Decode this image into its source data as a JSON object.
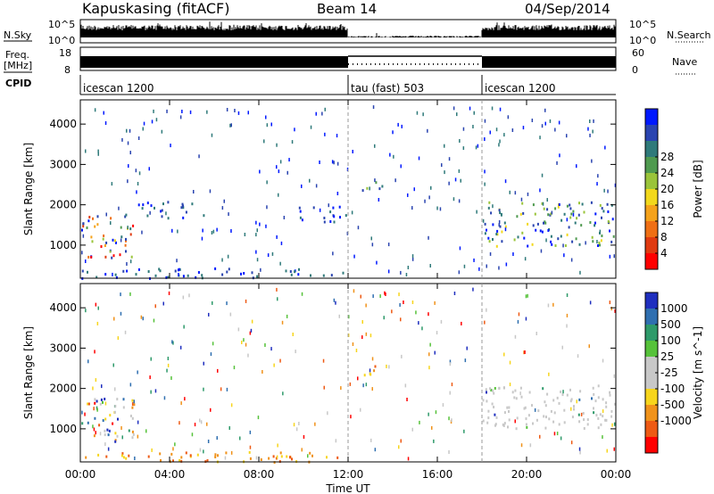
{
  "header": {
    "station": "Kapuskasing (fitACF)",
    "beam": "Beam 14",
    "date": "04/Sep/2014"
  },
  "strip_labels": {
    "nsky": "N.Sky",
    "freq_line1": "Freq.",
    "freq_line2": "[MHz]",
    "cpid": "CPID",
    "nsearch": "N.Search",
    "nave": "Nave",
    "nsky_ticks": [
      "10^5",
      "10^0"
    ],
    "nsearch_ticks": [
      "10^5",
      "10^0"
    ],
    "freq_ticks": [
      "18",
      "8"
    ],
    "nave_ticks": [
      "60",
      "0"
    ]
  },
  "cpid_segments": [
    {
      "start_h": 0,
      "end_h": 12,
      "label": "icescan 1200"
    },
    {
      "start_h": 12,
      "end_h": 18,
      "label": "tau (fast) 503"
    },
    {
      "start_h": 18,
      "end_h": 24,
      "label": "icescan 1200"
    }
  ],
  "chart_data": [
    {
      "type": "heatmap",
      "name": "power",
      "xlabel": "Time UT",
      "ylabel": "Slant Range [km]",
      "xlim": [
        0,
        24
      ],
      "ylim": [
        180,
        4600
      ],
      "x_ticks": [
        "00:00",
        "04:00",
        "08:00",
        "12:00",
        "16:00",
        "20:00",
        "00:00"
      ],
      "y_ticks": [
        1000,
        2000,
        3000,
        4000
      ],
      "colorbar": {
        "label": "Power [dB]",
        "ticks": [
          "4",
          "8",
          "12",
          "16",
          "20",
          "24",
          "28"
        ],
        "colors": [
          "#0019ff",
          "#2a44b0",
          "#2f7a7a",
          "#4f9a4f",
          "#9ac43a",
          "#f2d81c",
          "#f5a21a",
          "#ef6f14",
          "#e03a10",
          "#ff0000"
        ]
      },
      "echo_regions": [
        {
          "t0": 0.0,
          "t1": 2.4,
          "r0": 700,
          "r1": 1800,
          "level": "high"
        },
        {
          "t0": 2.4,
          "t1": 5.5,
          "r0": 1700,
          "r1": 2100,
          "level": "low"
        },
        {
          "t0": 0.0,
          "t1": 11.8,
          "r0": 200,
          "r1": 450,
          "level": "low"
        },
        {
          "t0": 9.5,
          "t1": 11.9,
          "r0": 1600,
          "r1": 2000,
          "level": "low"
        },
        {
          "t0": 12.5,
          "t1": 13.5,
          "r0": 2300,
          "r1": 2600,
          "level": "mid"
        },
        {
          "t0": 18.0,
          "t1": 24.0,
          "r0": 1000,
          "r1": 2100,
          "level": "mid"
        }
      ]
    },
    {
      "type": "heatmap",
      "name": "velocity",
      "xlabel": "Time UT",
      "ylabel": "Slant Range [km]",
      "xlim": [
        0,
        24
      ],
      "ylim": [
        180,
        4600
      ],
      "x_ticks": [
        "00:00",
        "04:00",
        "08:00",
        "12:00",
        "16:00",
        "20:00",
        "00:00"
      ],
      "y_ticks": [
        1000,
        2000,
        3000,
        4000
      ],
      "colorbar": {
        "label": "Velocity [m s^-1]",
        "ticks": [
          "1000",
          "500",
          "100",
          "25",
          "-25",
          "-100",
          "-500",
          "-1000"
        ],
        "colors": [
          "#1f2fbf",
          "#2f6fb0",
          "#2e9a6a",
          "#56c23a",
          "#c8c8c8",
          "#c8c8c8",
          "#f7d51c",
          "#f0921a",
          "#ee5a14",
          "#ff0000"
        ]
      },
      "echo_regions": [
        {
          "t0": 0.0,
          "t1": 2.4,
          "r0": 700,
          "r1": 1800,
          "level": "mixed"
        },
        {
          "t0": 0.0,
          "t1": 11.8,
          "r0": 200,
          "r1": 450,
          "level": "negative"
        },
        {
          "t0": 12.5,
          "t1": 13.5,
          "r0": 2300,
          "r1": 2600,
          "level": "negative"
        },
        {
          "t0": 18.0,
          "t1": 24.0,
          "r0": 1000,
          "r1": 2100,
          "level": "ground"
        }
      ]
    }
  ]
}
